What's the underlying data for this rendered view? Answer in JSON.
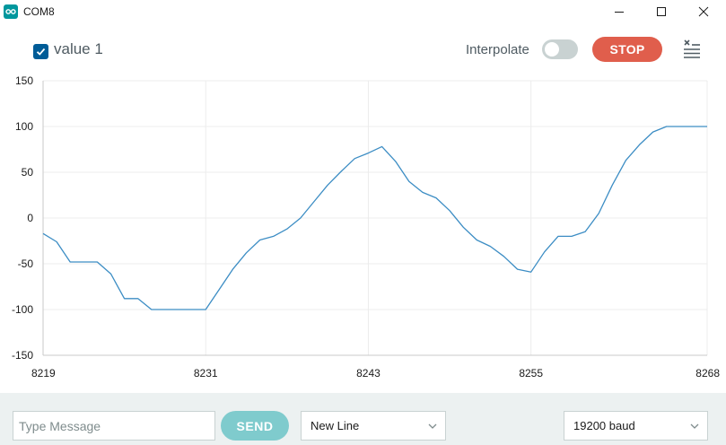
{
  "window": {
    "title": "COM8",
    "accent": "#00979d"
  },
  "toolbar": {
    "series_label": "value 1",
    "series_checked": true,
    "interpolate_label": "Interpolate",
    "interpolate_on": false,
    "stop_label": "STOP",
    "clear_icon": "clear-output-icon"
  },
  "chart_data": {
    "type": "line",
    "title": "",
    "xlabel": "",
    "ylabel": "",
    "xlim": [
      8219,
      8268
    ],
    "ylim": [
      -150,
      150
    ],
    "x_ticks": [
      "8219",
      "8231",
      "8243",
      "8255",
      "8268"
    ],
    "x_tick_values": [
      8219,
      8231,
      8243,
      8255,
      8268
    ],
    "y_ticks": [
      "150",
      "100",
      "50",
      "0",
      "-50",
      "-100",
      "-150"
    ],
    "y_tick_values": [
      150,
      100,
      50,
      0,
      -50,
      -100,
      -150
    ],
    "grid": true,
    "series": [
      {
        "color": "#3c8dc4",
        "x": [
          8219,
          8220,
          8221,
          8222,
          8223,
          8224,
          8225,
          8226,
          8227,
          8228,
          8229,
          8230,
          8231,
          8232,
          8233,
          8234,
          8235,
          8236,
          8237,
          8238,
          8239,
          8240,
          8241,
          8242,
          8243,
          8244,
          8245,
          8246,
          8247,
          8248,
          8249,
          8250,
          8251,
          8252,
          8253,
          8254,
          8255,
          8256,
          8257,
          8258,
          8259,
          8260,
          8261,
          8262,
          8263,
          8264,
          8265,
          8266,
          8267,
          8268
        ],
        "values": [
          -17,
          -26,
          -48,
          -48,
          -48,
          -61,
          -88,
          -88,
          -100,
          -100,
          -100,
          -100,
          -100,
          -78,
          -56,
          -38,
          -24,
          -20,
          -12,
          0,
          18,
          36,
          51,
          65,
          71,
          78,
          62,
          40,
          28,
          22,
          8,
          -10,
          -24,
          -31,
          -42,
          -56,
          -59,
          -37,
          -20,
          -20,
          -15,
          5,
          36,
          63,
          80,
          94,
          100,
          100,
          100,
          100
        ]
      }
    ]
  },
  "bottom": {
    "message_placeholder": "Type Message",
    "message_value": "",
    "send_label": "SEND",
    "line_ending": "New Line",
    "baud_rate": "19200 baud"
  }
}
